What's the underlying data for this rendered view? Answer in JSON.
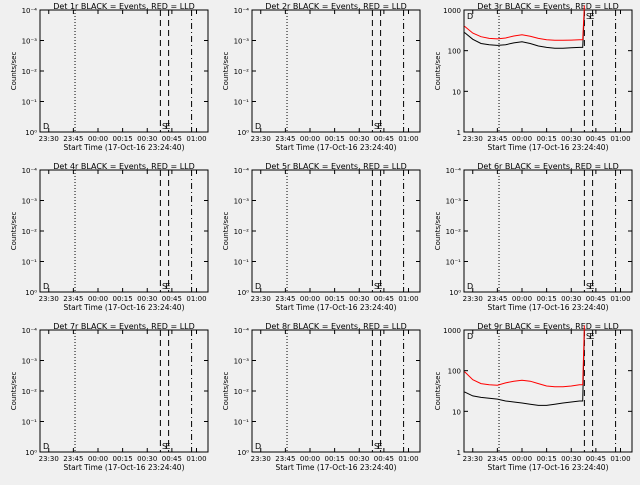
{
  "x_tick_labels": [
    "23:30",
    "23:45",
    "00:00",
    "00:15",
    "00:30",
    "00:45",
    "01:00"
  ],
  "xlabel": "Start Time (17-Oct-16 23:24:40)",
  "ylabel": "Counts/sec",
  "marker_labels": {
    "start": "D",
    "mid": "S",
    "end": "E"
  },
  "colors": {
    "background": "#f0f0f0",
    "events": "#000000",
    "lld": "#ff0000"
  },
  "chart_data": [
    {
      "type": "line",
      "title": "Det 1r BLACK = Events, RED = LLD",
      "xlabel": "Start Time (17-Oct-16 23:24:40)",
      "ylabel": "Counts/sec",
      "y_scale": "log",
      "ylim": [
        1,
        0.0001
      ],
      "y_tick_labels": [
        "10⁰",
        "10⁻¹",
        "10⁻²",
        "10⁻³",
        "10⁻⁴"
      ],
      "x_tick_labels": [
        "23:30",
        "23:45",
        "00:00",
        "00:15",
        "00:30",
        "00:45",
        "01:00"
      ],
      "series": []
    },
    {
      "type": "line",
      "title": "Det 2r BLACK = Events, RED = LLD",
      "xlabel": "Start Time (17-Oct-16 23:24:40)",
      "ylabel": "Counts/sec",
      "y_scale": "log",
      "ylim": [
        1,
        0.0001
      ],
      "y_tick_labels": [
        "10⁰",
        "10⁻¹",
        "10⁻²",
        "10⁻³",
        "10⁻⁴"
      ],
      "x_tick_labels": [
        "23:30",
        "23:45",
        "00:00",
        "00:15",
        "00:30",
        "00:45",
        "01:00"
      ],
      "series": []
    },
    {
      "type": "line",
      "title": "Det 3r BLACK = Events, RED = LLD",
      "xlabel": "Start Time (17-Oct-16 23:24:40)",
      "ylabel": "Counts/sec",
      "y_scale": "log",
      "ylim": [
        1,
        1000
      ],
      "y_tick_labels": [
        "1",
        "10",
        "100",
        "1000"
      ],
      "x_tick_labels": [
        "23:30",
        "23:45",
        "00:00",
        "00:15",
        "00:30",
        "00:45",
        "01:00"
      ],
      "series": [
        {
          "color": "#000000",
          "x": [
            "23:25",
            "23:30",
            "23:35",
            "23:40",
            "23:45",
            "23:50",
            "23:55",
            "00:00",
            "00:05",
            "00:10",
            "00:15",
            "00:20",
            "00:25",
            "00:30",
            "00:35",
            "00:37",
            "00:38"
          ],
          "values": [
            280,
            190,
            150,
            140,
            135,
            140,
            155,
            165,
            150,
            130,
            120,
            115,
            115,
            118,
            120,
            120,
            900
          ]
        },
        {
          "color": "#ff0000",
          "x": [
            "23:25",
            "23:30",
            "23:35",
            "23:40",
            "23:45",
            "23:50",
            "23:55",
            "00:00",
            "00:05",
            "00:10",
            "00:15",
            "00:20",
            "00:25",
            "00:30",
            "00:35",
            "00:37",
            "00:38"
          ],
          "values": [
            400,
            270,
            220,
            200,
            195,
            205,
            230,
            245,
            225,
            200,
            185,
            180,
            180,
            182,
            185,
            185,
            1300
          ]
        }
      ]
    },
    {
      "type": "line",
      "title": "Det 4r BLACK = Events, RED = LLD",
      "xlabel": "Start Time (17-Oct-16 23:24:40)",
      "ylabel": "Counts/sec",
      "y_scale": "log",
      "ylim": [
        1,
        0.0001
      ],
      "y_tick_labels": [
        "10⁰",
        "10⁻¹",
        "10⁻²",
        "10⁻³",
        "10⁻⁴"
      ],
      "x_tick_labels": [
        "23:30",
        "23:45",
        "00:00",
        "00:15",
        "00:30",
        "00:45",
        "01:00"
      ],
      "series": []
    },
    {
      "type": "line",
      "title": "Det 5r BLACK = Events, RED = LLD",
      "xlabel": "Start Time (17-Oct-16 23:24:40)",
      "ylabel": "Counts/sec",
      "y_scale": "log",
      "ylim": [
        1,
        0.0001
      ],
      "y_tick_labels": [
        "10⁰",
        "10⁻¹",
        "10⁻²",
        "10⁻³",
        "10⁻⁴"
      ],
      "x_tick_labels": [
        "23:30",
        "23:45",
        "00:00",
        "00:15",
        "00:30",
        "00:45",
        "01:00"
      ],
      "series": []
    },
    {
      "type": "line",
      "title": "Det 6r BLACK = Events, RED = LLD",
      "xlabel": "Start Time (17-Oct-16 23:24:40)",
      "ylabel": "Counts/sec",
      "y_scale": "log",
      "ylim": [
        1,
        0.0001
      ],
      "y_tick_labels": [
        "10⁰",
        "10⁻¹",
        "10⁻²",
        "10⁻³",
        "10⁻⁴"
      ],
      "x_tick_labels": [
        "23:30",
        "23:45",
        "00:00",
        "00:15",
        "00:30",
        "00:45",
        "01:00"
      ],
      "series": []
    },
    {
      "type": "line",
      "title": "Det 7r BLACK = Events, RED = LLD",
      "xlabel": "Start Time (17-Oct-16 23:24:40)",
      "ylabel": "Counts/sec",
      "y_scale": "log",
      "ylim": [
        1,
        0.0001
      ],
      "y_tick_labels": [
        "10⁰",
        "10⁻¹",
        "10⁻²",
        "10⁻³",
        "10⁻⁴"
      ],
      "x_tick_labels": [
        "23:30",
        "23:45",
        "00:00",
        "00:15",
        "00:30",
        "00:45",
        "01:00"
      ],
      "series": []
    },
    {
      "type": "line",
      "title": "Det 8r BLACK = Events, RED = LLD",
      "xlabel": "Start Time (17-Oct-16 23:24:40)",
      "ylabel": "Counts/sec",
      "y_scale": "log",
      "ylim": [
        1,
        0.0001
      ],
      "y_tick_labels": [
        "10⁰",
        "10⁻¹",
        "10⁻²",
        "10⁻³",
        "10⁻⁴"
      ],
      "x_tick_labels": [
        "23:30",
        "23:45",
        "00:00",
        "00:15",
        "00:30",
        "00:45",
        "01:00"
      ],
      "series": []
    },
    {
      "type": "line",
      "title": "Det 9r BLACK = Events, RED = LLD",
      "xlabel": "Start Time (17-Oct-16 23:24:40)",
      "ylabel": "Counts/sec",
      "y_scale": "log",
      "ylim": [
        1,
        1000
      ],
      "y_tick_labels": [
        "1",
        "10",
        "100",
        "1000"
      ],
      "x_tick_labels": [
        "23:30",
        "23:45",
        "00:00",
        "00:15",
        "00:30",
        "00:45",
        "01:00"
      ],
      "series": [
        {
          "color": "#000000",
          "x": [
            "23:25",
            "23:30",
            "23:35",
            "23:40",
            "23:45",
            "23:50",
            "23:55",
            "00:00",
            "00:05",
            "00:10",
            "00:15",
            "00:20",
            "00:25",
            "00:30",
            "00:35",
            "00:37",
            "00:38"
          ],
          "values": [
            30,
            24,
            22,
            21,
            20,
            18,
            17,
            16,
            15,
            14,
            14,
            15,
            16,
            17,
            18,
            18,
            900
          ]
        },
        {
          "color": "#ff0000",
          "x": [
            "23:25",
            "23:30",
            "23:35",
            "23:40",
            "23:45",
            "23:50",
            "23:55",
            "00:00",
            "00:05",
            "00:10",
            "00:15",
            "00:20",
            "00:25",
            "00:30",
            "00:35",
            "00:37",
            "00:38"
          ],
          "values": [
            95,
            60,
            48,
            45,
            44,
            50,
            55,
            58,
            55,
            48,
            42,
            40,
            40,
            42,
            45,
            45,
            1300
          ]
        }
      ]
    }
  ]
}
